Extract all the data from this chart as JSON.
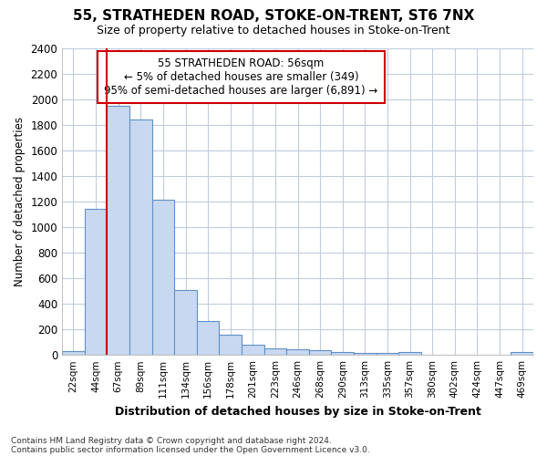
{
  "title": "55, STRATHEDEN ROAD, STOKE-ON-TRENT, ST6 7NX",
  "subtitle": "Size of property relative to detached houses in Stoke-on-Trent",
  "xlabel": "Distribution of detached houses by size in Stoke-on-Trent",
  "ylabel": "Number of detached properties",
  "annotation_title": "55 STRATHEDEN ROAD: 56sqm",
  "annotation_line1": "← 5% of detached houses are smaller (349)",
  "annotation_line2": "95% of semi-detached houses are larger (6,891) →",
  "bin_labels": [
    "22sqm",
    "44sqm",
    "67sqm",
    "89sqm",
    "111sqm",
    "134sqm",
    "156sqm",
    "178sqm",
    "201sqm",
    "223sqm",
    "246sqm",
    "268sqm",
    "290sqm",
    "313sqm",
    "335sqm",
    "357sqm",
    "380sqm",
    "402sqm",
    "424sqm",
    "447sqm",
    "469sqm"
  ],
  "bin_values": [
    30,
    1145,
    1950,
    1840,
    1210,
    510,
    265,
    155,
    80,
    50,
    45,
    40,
    20,
    18,
    12,
    20,
    0,
    0,
    0,
    0,
    20
  ],
  "bar_color": "#c8d8f0",
  "bar_edge_color": "#6090c8",
  "redline_x": 1.5,
  "ylim": [
    0,
    2400
  ],
  "yticks": [
    0,
    200,
    400,
    600,
    800,
    1000,
    1200,
    1400,
    1600,
    1800,
    2000,
    2200,
    2400
  ],
  "bg_color": "#ffffff",
  "plot_bg_color": "#ffffff",
  "grid_color": "#c0cce0",
  "annotation_box_color": "#ffffff",
  "annotation_box_edge": "#cc0000",
  "redline_color": "#cc0000",
  "footnote1": "Contains HM Land Registry data © Crown copyright and database right 2024.",
  "footnote2": "Contains public sector information licensed under the Open Government Licence v3.0."
}
